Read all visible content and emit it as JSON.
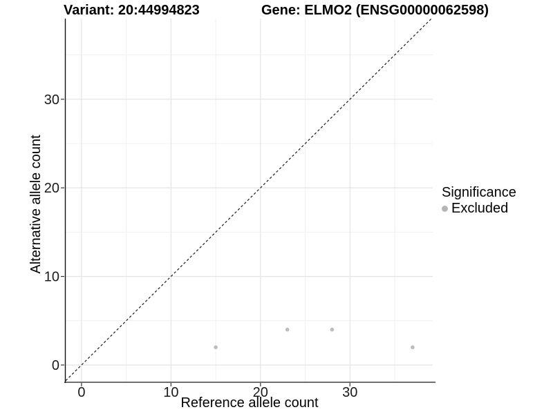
{
  "titles": {
    "variant": "Variant: 20:44994823",
    "gene": "Gene: ELMO2 (ENSG00000062598)"
  },
  "chart_data": {
    "type": "scatter",
    "title_left": "Variant: 20:44994823",
    "title_right": "Gene: ELMO2 (ENSG00000062598)",
    "xlabel": "Reference allele count",
    "ylabel": "Alternative allele count",
    "xlim": [
      -1.77,
      39.25
    ],
    "ylim": [
      -1.87,
      39.1
    ],
    "x_ticks": [
      0,
      10,
      20,
      30
    ],
    "y_ticks": [
      0,
      10,
      20,
      30
    ],
    "x_minor_ticks": [
      5,
      15,
      25,
      35
    ],
    "y_minor_ticks": [
      5,
      15,
      25,
      35
    ],
    "grid": true,
    "identity_line": {
      "type": "dashed",
      "equation": "y = x",
      "color": "#1a1a1a"
    },
    "series": [
      {
        "name": "Excluded",
        "color": "#bcbcbc",
        "points": [
          [
            15,
            2
          ],
          [
            23,
            4
          ],
          [
            28,
            4
          ],
          [
            37,
            2
          ]
        ]
      }
    ],
    "legend": {
      "position": "right",
      "title": "Significance",
      "items": [
        {
          "label": "Excluded",
          "color": "#b5b5b5"
        }
      ]
    },
    "colors": {
      "grid_major": "#e4e4e4",
      "grid_minor": "#efefef",
      "axis_line_x": "#6e6e6e",
      "axis_line_y": "#111111",
      "tick": "#333333"
    }
  }
}
